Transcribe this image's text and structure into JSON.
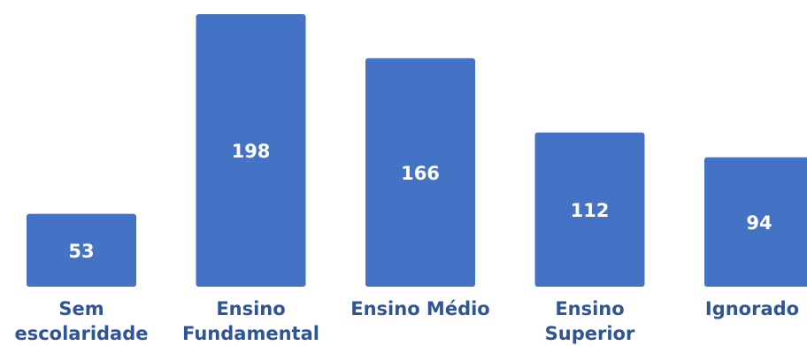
{
  "chart_data": {
    "type": "bar",
    "categories": [
      [
        "Sem",
        "escolaridade"
      ],
      [
        "Ensino",
        "Fundamental"
      ],
      [
        "Ensino Médio"
      ],
      [
        "Ensino",
        "Superior"
      ],
      [
        "Ignorado"
      ]
    ],
    "values": [
      53,
      198,
      166,
      112,
      94
    ],
    "value_labels": [
      "53",
      "198",
      "166",
      "112",
      "94"
    ],
    "title": "",
    "xlabel": "",
    "ylabel": "",
    "ylim": [
      0,
      198
    ],
    "grid": false,
    "legend": "none",
    "colors": {
      "bar": "#4472C4",
      "value_label": "#FFFFFF",
      "category_label": "#2F5597"
    }
  }
}
